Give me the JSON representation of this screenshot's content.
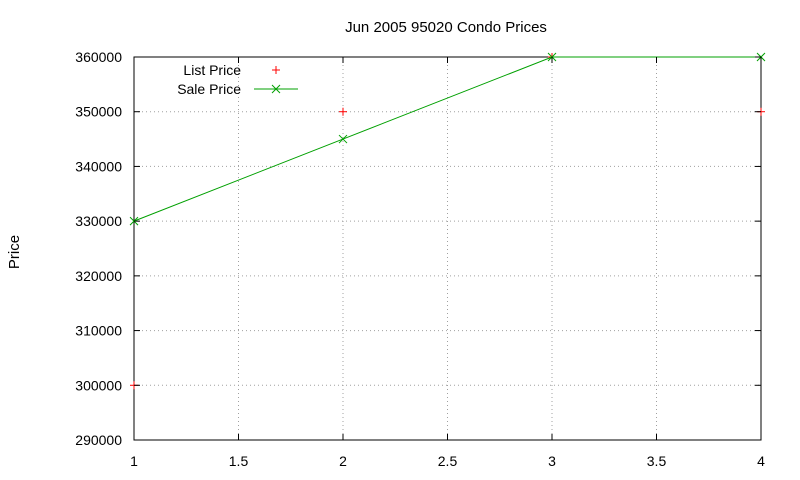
{
  "chart_data": {
    "type": "line",
    "title": "Jun 2005 95020 Condo Prices",
    "xlabel": "",
    "ylabel": "Price",
    "xlim": [
      1,
      4
    ],
    "ylim": [
      290000,
      360000
    ],
    "x_ticks": [
      "1",
      "1.5",
      "2",
      "2.5",
      "3",
      "3.5",
      "4"
    ],
    "y_ticks": [
      "290000",
      "300000",
      "310000",
      "320000",
      "330000",
      "340000",
      "350000",
      "360000"
    ],
    "grid": true,
    "legend_position": "top-left",
    "series": [
      {
        "name": "List Price",
        "style": "points",
        "marker": "+",
        "color": "#ff0000",
        "x": [
          1,
          2,
          3,
          4
        ],
        "y": [
          300000,
          350000,
          360000,
          350000
        ]
      },
      {
        "name": "Sale Price",
        "style": "linespoints",
        "marker": "x",
        "color": "#00a000",
        "x": [
          1,
          2,
          3,
          4
        ],
        "y": [
          330000,
          345000,
          360000,
          360000
        ]
      }
    ]
  }
}
